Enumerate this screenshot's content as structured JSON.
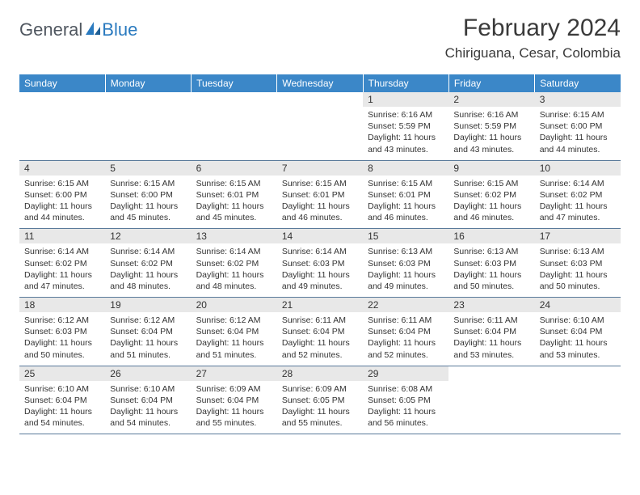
{
  "logo": {
    "text1": "General",
    "text2": "Blue"
  },
  "title": "February 2024",
  "location": "Chiriguana, Cesar, Colombia",
  "colors": {
    "header_bg": "#3b87c8",
    "header_text": "#ffffff",
    "daynum_bg": "#e8e8e8",
    "border": "#5a7a9a",
    "logo_gray": "#505760",
    "logo_blue": "#2a7abf"
  },
  "daysOfWeek": [
    "Sunday",
    "Monday",
    "Tuesday",
    "Wednesday",
    "Thursday",
    "Friday",
    "Saturday"
  ],
  "weeks": [
    {
      "nums": [
        "",
        "",
        "",
        "",
        "1",
        "2",
        "3"
      ],
      "details": [
        "",
        "",
        "",
        "",
        "Sunrise: 6:16 AM\nSunset: 5:59 PM\nDaylight: 11 hours and 43 minutes.",
        "Sunrise: 6:16 AM\nSunset: 5:59 PM\nDaylight: 11 hours and 43 minutes.",
        "Sunrise: 6:15 AM\nSunset: 6:00 PM\nDaylight: 11 hours and 44 minutes."
      ]
    },
    {
      "nums": [
        "4",
        "5",
        "6",
        "7",
        "8",
        "9",
        "10"
      ],
      "details": [
        "Sunrise: 6:15 AM\nSunset: 6:00 PM\nDaylight: 11 hours and 44 minutes.",
        "Sunrise: 6:15 AM\nSunset: 6:00 PM\nDaylight: 11 hours and 45 minutes.",
        "Sunrise: 6:15 AM\nSunset: 6:01 PM\nDaylight: 11 hours and 45 minutes.",
        "Sunrise: 6:15 AM\nSunset: 6:01 PM\nDaylight: 11 hours and 46 minutes.",
        "Sunrise: 6:15 AM\nSunset: 6:01 PM\nDaylight: 11 hours and 46 minutes.",
        "Sunrise: 6:15 AM\nSunset: 6:02 PM\nDaylight: 11 hours and 46 minutes.",
        "Sunrise: 6:14 AM\nSunset: 6:02 PM\nDaylight: 11 hours and 47 minutes."
      ]
    },
    {
      "nums": [
        "11",
        "12",
        "13",
        "14",
        "15",
        "16",
        "17"
      ],
      "details": [
        "Sunrise: 6:14 AM\nSunset: 6:02 PM\nDaylight: 11 hours and 47 minutes.",
        "Sunrise: 6:14 AM\nSunset: 6:02 PM\nDaylight: 11 hours and 48 minutes.",
        "Sunrise: 6:14 AM\nSunset: 6:02 PM\nDaylight: 11 hours and 48 minutes.",
        "Sunrise: 6:14 AM\nSunset: 6:03 PM\nDaylight: 11 hours and 49 minutes.",
        "Sunrise: 6:13 AM\nSunset: 6:03 PM\nDaylight: 11 hours and 49 minutes.",
        "Sunrise: 6:13 AM\nSunset: 6:03 PM\nDaylight: 11 hours and 50 minutes.",
        "Sunrise: 6:13 AM\nSunset: 6:03 PM\nDaylight: 11 hours and 50 minutes."
      ]
    },
    {
      "nums": [
        "18",
        "19",
        "20",
        "21",
        "22",
        "23",
        "24"
      ],
      "details": [
        "Sunrise: 6:12 AM\nSunset: 6:03 PM\nDaylight: 11 hours and 50 minutes.",
        "Sunrise: 6:12 AM\nSunset: 6:04 PM\nDaylight: 11 hours and 51 minutes.",
        "Sunrise: 6:12 AM\nSunset: 6:04 PM\nDaylight: 11 hours and 51 minutes.",
        "Sunrise: 6:11 AM\nSunset: 6:04 PM\nDaylight: 11 hours and 52 minutes.",
        "Sunrise: 6:11 AM\nSunset: 6:04 PM\nDaylight: 11 hours and 52 minutes.",
        "Sunrise: 6:11 AM\nSunset: 6:04 PM\nDaylight: 11 hours and 53 minutes.",
        "Sunrise: 6:10 AM\nSunset: 6:04 PM\nDaylight: 11 hours and 53 minutes."
      ]
    },
    {
      "nums": [
        "25",
        "26",
        "27",
        "28",
        "29",
        "",
        ""
      ],
      "details": [
        "Sunrise: 6:10 AM\nSunset: 6:04 PM\nDaylight: 11 hours and 54 minutes.",
        "Sunrise: 6:10 AM\nSunset: 6:04 PM\nDaylight: 11 hours and 54 minutes.",
        "Sunrise: 6:09 AM\nSunset: 6:04 PM\nDaylight: 11 hours and 55 minutes.",
        "Sunrise: 6:09 AM\nSunset: 6:05 PM\nDaylight: 11 hours and 55 minutes.",
        "Sunrise: 6:08 AM\nSunset: 6:05 PM\nDaylight: 11 hours and 56 minutes.",
        "",
        ""
      ]
    }
  ]
}
